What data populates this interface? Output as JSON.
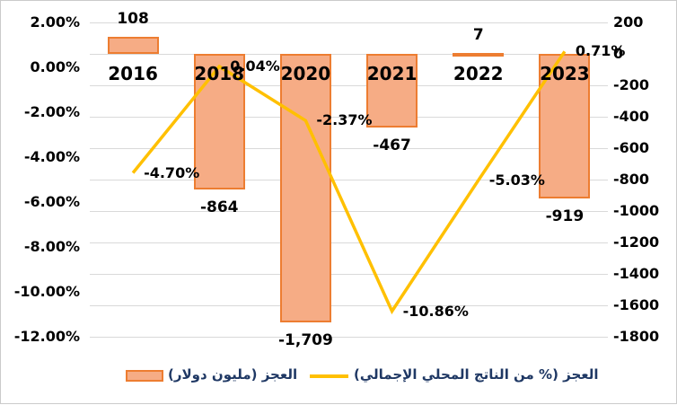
{
  "chart_data": {
    "type": "combo-bar-line",
    "categories": [
      "2016",
      "2018",
      "2020",
      "2021",
      "2022",
      "2023"
    ],
    "series": [
      {
        "name": "العجز (مليون دولار)",
        "type": "bar",
        "axis": "right",
        "values": [
          108,
          -864,
          -1709,
          -467,
          7,
          -919
        ],
        "data_labels": [
          "108",
          "-864",
          "-1,709",
          "-467",
          "7",
          "-919"
        ],
        "fill_color": "#F6AC85",
        "border_color": "#ED7D31"
      },
      {
        "name": "العجز (% من الناتج المحلي الإجمالي)",
        "type": "line",
        "axis": "left",
        "values": [
          -4.7,
          0.04,
          -2.37,
          -10.86,
          -5.03,
          0.71
        ],
        "data_labels": [
          "-4.70%",
          "0.04%",
          "-2.37%",
          "-10.86%",
          "-5.03%",
          "0.71%"
        ],
        "line_color": "#FFC000"
      }
    ],
    "left_axis": {
      "max": 2,
      "min": -12,
      "tick_labels": [
        "2.00%",
        "0.00%",
        "-2.00%",
        "-4.00%",
        "-6.00%",
        "-8.00%",
        "-10.00%",
        "-12.00%"
      ],
      "tick_values": [
        2,
        0,
        -2,
        -4,
        -6,
        -8,
        -10,
        -12
      ]
    },
    "right_axis": {
      "max": 200,
      "min": -1800,
      "tick_labels": [
        "200",
        "0",
        "-200",
        "-400",
        "-600",
        "-800",
        "-1000",
        "-1200",
        "-1400",
        "-1600",
        "-1800"
      ],
      "tick_values": [
        200,
        0,
        -200,
        -400,
        -600,
        -800,
        -1000,
        -1200,
        -1400,
        -1600,
        -1800
      ]
    },
    "grid": true,
    "legend_position": "bottom",
    "colors": {
      "gridline": "#D9D9D9",
      "label_text": "#000000",
      "legend_text": "#1F3864",
      "frame": "#CBCBCB"
    }
  }
}
